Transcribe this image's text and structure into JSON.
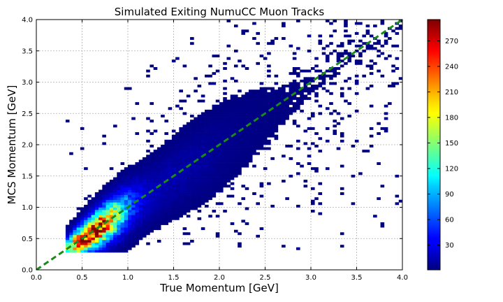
{
  "chart_data": {
    "type": "heatmap",
    "title": "Simulated Exiting NumuCC Muon Tracks",
    "xlabel": "True Momentum [GeV]",
    "ylabel": "MCS Momentum [GeV]",
    "xlim": [
      0.0,
      4.0
    ],
    "ylim": [
      0.0,
      4.0
    ],
    "x_ticks": [
      "0.0",
      "0.5",
      "1.0",
      "1.5",
      "2.0",
      "2.5",
      "3.0",
      "3.5",
      "4.0"
    ],
    "y_ticks": [
      "0.0",
      "0.5",
      "1.0",
      "1.5",
      "2.0",
      "2.5",
      "3.0",
      "3.5",
      "4.0"
    ],
    "grid": true,
    "bins": {
      "x": 100,
      "y": 100,
      "range": [
        0.0,
        4.0
      ]
    },
    "colorbar": {
      "colormap": "jet",
      "min": 1,
      "max": 295,
      "ticks": [
        "30",
        "60",
        "90",
        "120",
        "150",
        "180",
        "210",
        "240",
        "270"
      ]
    },
    "density_model": {
      "description": "Counts concentrated along the diagonal MCS=True, peaking near 0.55-0.7 GeV and spreading with momentum; sparse outliers above 2.5 GeV.",
      "peak_count": 290,
      "peak_at": [
        0.62,
        0.62
      ]
    },
    "reference_line": {
      "label": "y = x",
      "style": "dashed",
      "color": "#1a8a1a",
      "points": [
        [
          0.0,
          0.0
        ],
        [
          4.0,
          4.0
        ]
      ]
    },
    "colors": {
      "axes_background": "#ffffff",
      "grid": "#b0b0b0",
      "reference_line": "#1a8a1a"
    }
  }
}
